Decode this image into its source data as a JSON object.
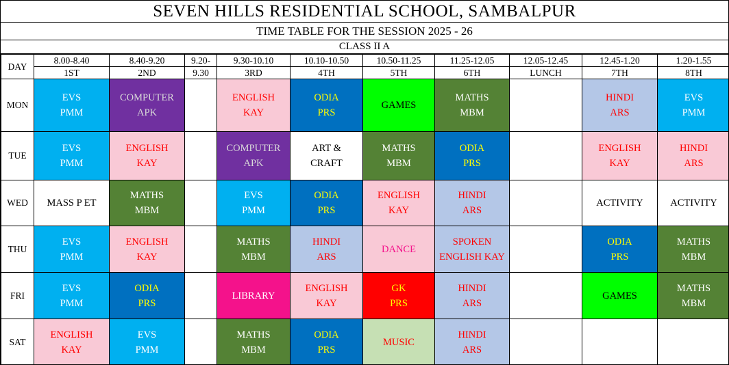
{
  "header": {
    "school_name": "SEVEN HILLS RESIDENTIAL SCHOOL, SAMBALPUR",
    "session_title": "TIME TABLE FOR THE SESSION 2025 - 26",
    "class_title": "CLASS II A"
  },
  "table": {
    "day_header": "DAY",
    "columns": [
      {
        "time": "8.00-8.40",
        "period": "1ST"
      },
      {
        "time": "8.40-9.20",
        "period": "2ND"
      },
      {
        "time": "9.20-",
        "period": "9.30"
      },
      {
        "time": "9.30-10.10",
        "period": "3RD"
      },
      {
        "time": "10.10-10.50",
        "period": "4TH"
      },
      {
        "time": "10.50-11.25",
        "period": "5TH"
      },
      {
        "time": "11.25-12.05",
        "period": "6TH"
      },
      {
        "time": "12.05-12.45",
        "period": "LUNCH"
      },
      {
        "time": "12.45-1.20",
        "period": "7TH"
      },
      {
        "time": "1.20-1.55",
        "period": "8TH"
      }
    ],
    "styles": {
      "cyan": {
        "bg": "#00B0F0",
        "fg": "#FFFFFF"
      },
      "purple": {
        "bg": "#7030A0",
        "fg": "#D9D9D9"
      },
      "pink": {
        "bg": "#F9C9D6",
        "fg": "#FF0000"
      },
      "blue": {
        "bg": "#0070C0",
        "fg": "#FFFF00"
      },
      "green": {
        "bg": "#00FF00",
        "fg": "#000000"
      },
      "olive": {
        "bg": "#548235",
        "fg": "#FFFFFF"
      },
      "peri": {
        "bg": "#B4C7E7",
        "fg": "#FF0000"
      },
      "white": {
        "bg": "#FFFFFF",
        "fg": "#000000"
      },
      "magenta": {
        "bg": "#F4128B",
        "fg": "#FFFFFF"
      },
      "red": {
        "bg": "#FF0000",
        "fg": "#FFFF00"
      },
      "palegreen": {
        "bg": "#C6E0B4",
        "fg": "#FF0000"
      },
      "dancepink": {
        "bg": "#F9C9D6",
        "fg": "#F4128B"
      },
      "blank": {
        "bg": "#FFFFFF",
        "fg": "#000000"
      }
    },
    "rows": [
      {
        "day": "MON",
        "cells": [
          {
            "lines": [
              "EVS",
              "PMM"
            ],
            "style": "cyan"
          },
          {
            "lines": [
              "COMPUTER",
              "APK"
            ],
            "style": "purple"
          },
          {
            "lines": [],
            "style": "blank"
          },
          {
            "lines": [
              "ENGLISH",
              "KAY"
            ],
            "style": "pink"
          },
          {
            "lines": [
              "ODIA",
              "PRS"
            ],
            "style": "blue"
          },
          {
            "lines": [
              "GAMES"
            ],
            "style": "green"
          },
          {
            "lines": [
              "MATHS",
              "MBM"
            ],
            "style": "olive"
          },
          {
            "lines": [],
            "style": "blank"
          },
          {
            "lines": [
              "HINDI",
              "ARS"
            ],
            "style": "peri"
          },
          {
            "lines": [
              "EVS",
              "PMM"
            ],
            "style": "cyan"
          }
        ]
      },
      {
        "day": "TUE",
        "cells": [
          {
            "lines": [
              "EVS",
              "PMM"
            ],
            "style": "cyan"
          },
          {
            "lines": [
              "ENGLISH",
              "KAY"
            ],
            "style": "pink"
          },
          {
            "lines": [],
            "style": "blank"
          },
          {
            "lines": [
              "COMPUTER",
              "APK"
            ],
            "style": "purple"
          },
          {
            "lines": [
              "ART &",
              "CRAFT"
            ],
            "style": "white"
          },
          {
            "lines": [
              "MATHS",
              "MBM"
            ],
            "style": "olive"
          },
          {
            "lines": [
              "ODIA",
              "PRS"
            ],
            "style": "blue"
          },
          {
            "lines": [],
            "style": "blank"
          },
          {
            "lines": [
              "ENGLISH",
              "KAY"
            ],
            "style": "pink"
          },
          {
            "lines": [
              "HINDI",
              "ARS"
            ],
            "style": "pink"
          }
        ]
      },
      {
        "day": "WED",
        "cells": [
          {
            "lines": [
              "MASS P ET"
            ],
            "style": "white"
          },
          {
            "lines": [
              "MATHS",
              "MBM"
            ],
            "style": "olive"
          },
          {
            "lines": [],
            "style": "blank"
          },
          {
            "lines": [
              "EVS",
              "PMM"
            ],
            "style": "cyan"
          },
          {
            "lines": [
              "ODIA",
              "PRS"
            ],
            "style": "blue"
          },
          {
            "lines": [
              "ENGLISH",
              "KAY"
            ],
            "style": "pink"
          },
          {
            "lines": [
              "HINDI",
              "ARS"
            ],
            "style": "peri"
          },
          {
            "lines": [],
            "style": "blank"
          },
          {
            "lines": [
              "ACTIVITY"
            ],
            "style": "white"
          },
          {
            "lines": [
              "ACTIVITY"
            ],
            "style": "white"
          }
        ]
      },
      {
        "day": "THU",
        "cells": [
          {
            "lines": [
              "EVS",
              "PMM"
            ],
            "style": "cyan"
          },
          {
            "lines": [
              "ENGLISH",
              "KAY"
            ],
            "style": "pink"
          },
          {
            "lines": [],
            "style": "blank"
          },
          {
            "lines": [
              "MATHS",
              "MBM"
            ],
            "style": "olive"
          },
          {
            "lines": [
              "HINDI",
              "ARS"
            ],
            "style": "peri"
          },
          {
            "lines": [
              "DANCE"
            ],
            "style": "dancepink"
          },
          {
            "lines": [
              "SPOKEN",
              "ENGLISH KAY"
            ],
            "style": "peri"
          },
          {
            "lines": [],
            "style": "blank"
          },
          {
            "lines": [
              "ODIA",
              "PRS"
            ],
            "style": "blue"
          },
          {
            "lines": [
              "MATHS",
              "MBM"
            ],
            "style": "olive"
          }
        ]
      },
      {
        "day": "FRI",
        "cells": [
          {
            "lines": [
              "EVS",
              "PMM"
            ],
            "style": "cyan"
          },
          {
            "lines": [
              "ODIA",
              "PRS"
            ],
            "style": "blue"
          },
          {
            "lines": [],
            "style": "blank"
          },
          {
            "lines": [
              "LIBRARY"
            ],
            "style": "magenta"
          },
          {
            "lines": [
              "ENGLISH",
              "KAY"
            ],
            "style": "pink"
          },
          {
            "lines": [
              "GK",
              "PRS"
            ],
            "style": "red"
          },
          {
            "lines": [
              "HINDI",
              "ARS"
            ],
            "style": "peri"
          },
          {
            "lines": [],
            "style": "blank"
          },
          {
            "lines": [
              "GAMES"
            ],
            "style": "green"
          },
          {
            "lines": [
              "MATHS",
              "MBM"
            ],
            "style": "olive"
          }
        ]
      },
      {
        "day": "SAT",
        "cells": [
          {
            "lines": [
              "ENGLISH",
              "KAY"
            ],
            "style": "pink"
          },
          {
            "lines": [
              "EVS",
              "PMM"
            ],
            "style": "cyan"
          },
          {
            "lines": [],
            "style": "blank"
          },
          {
            "lines": [
              "MATHS",
              "MBM"
            ],
            "style": "olive"
          },
          {
            "lines": [
              "ODIA",
              "PRS"
            ],
            "style": "blue"
          },
          {
            "lines": [
              "MUSIC"
            ],
            "style": "palegreen"
          },
          {
            "lines": [
              "HINDI",
              "ARS"
            ],
            "style": "peri"
          },
          {
            "lines": [],
            "style": "blank"
          },
          {
            "lines": [],
            "style": "blank"
          },
          {
            "lines": [],
            "style": "blank"
          }
        ]
      }
    ]
  }
}
